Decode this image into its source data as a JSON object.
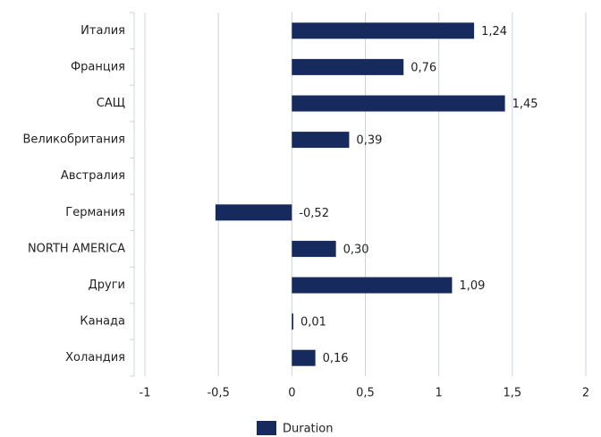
{
  "chart_data": {
    "type": "bar",
    "orientation": "horizontal",
    "categories": [
      "Италия",
      "Франция",
      "САЩ",
      "Великобритания",
      "Австралия",
      "Германия",
      "NORTH AMERICA",
      "Други",
      "Канада",
      "Холандия"
    ],
    "series": [
      {
        "name": "Duration",
        "color": "#172a5e",
        "values": [
          1.24,
          0.76,
          1.45,
          0.39,
          null,
          -0.52,
          0.3,
          1.09,
          0.01,
          0.16
        ],
        "value_labels": [
          "1,24",
          "0,76",
          "1,45",
          "0,39",
          null,
          "-0,52",
          "0,30",
          "1,09",
          "0,01",
          "0,16"
        ]
      }
    ],
    "xlim": [
      -1,
      2
    ],
    "xticks": [
      -1,
      {
        "value": -0.5,
        "label": "-0,5"
      },
      0,
      {
        "value": 0.5,
        "label": "0,5"
      },
      1,
      {
        "value": 1.5,
        "label": "1,5"
      },
      2
    ],
    "grid": true,
    "legend": "bottom"
  }
}
